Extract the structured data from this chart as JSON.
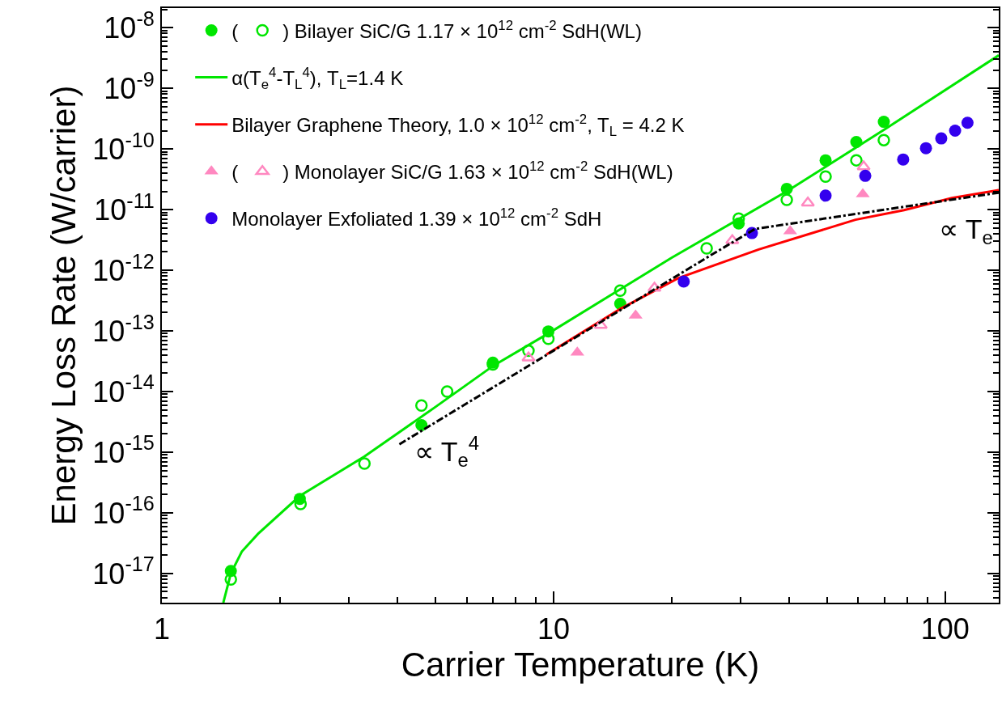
{
  "chart_data": {
    "type": "scatter",
    "xlabel": "Carrier Temperature (K)",
    "ylabel": "Energy Loss Rate (W/carrier)",
    "log": "xy",
    "legend": "top left",
    "xlim": [
      1,
      137
    ],
    "ylim": [
      3.3e-18,
      2.1e-08
    ],
    "xticks": [
      1,
      10,
      100
    ],
    "yticks": [
      {
        "value": 1e-17,
        "label": "10$^{-17}$"
      },
      {
        "value": 1e-16,
        "label": "10$^{-16}$"
      },
      {
        "value": 1e-15,
        "label": "10$^{-15}$"
      },
      {
        "value": 1e-14,
        "label": "10$^{-14}$"
      },
      {
        "value": 1e-13,
        "label": "10$^{-13}$"
      },
      {
        "value": 1e-12,
        "label": "10$^{-12}$"
      },
      {
        "value": 1e-11,
        "label": "10$^{-11}$"
      },
      {
        "value": 1e-10,
        "label": "10$^{-10}$"
      },
      {
        "value": 1e-09,
        "label": "10$^{-9}$"
      },
      {
        "value": 1e-08,
        "label": "10$^{-8}$"
      }
    ],
    "series": [
      {
        "name": "(",
        "marker": "circle",
        "color": "#00e600",
        "x": [
          1.5,
          2.25,
          4.6,
          7.0,
          9.7,
          14.8,
          29.7,
          39.4,
          49.5,
          59.3,
          69.7
        ],
        "values": [
          1.1e-17,
          1.7e-16,
          2.8e-15,
          3e-14,
          9.8e-14,
          2.8e-13,
          5.9e-12,
          2.2e-11,
          6.5e-11,
          1.3e-10,
          2.8e-10
        ]
      },
      {
        "name": ") Bilayer SiC/G 1.17 × 10$^{12}$ cm$^{-2}$ SdH(WL)",
        "marker": "circle-open",
        "color": "#00e600",
        "x": [
          1.5,
          2.26,
          3.29,
          4.6,
          5.35,
          7.0,
          8.63,
          9.7,
          14.8,
          24.6,
          29.7,
          39.4,
          49.5,
          59.3,
          69.7
        ],
        "values": [
          8e-18,
          1.4e-16,
          6.5e-16,
          5.9e-15,
          1e-14,
          2.8e-14,
          4.7e-14,
          7.4e-14,
          4.6e-13,
          2.3e-12,
          7.1e-12,
          1.45e-11,
          3.5e-11,
          6.5e-11,
          1.4e-10
        ]
      },
      {
        "name": "α(T$_{e}$$^{4}$-T$_{L}$$^{4}$), T$_{L}$=1.4 K",
        "type": "line",
        "line_style": "solid",
        "color": "#00e600",
        "x": [
          1.435,
          1.5,
          1.6,
          1.76,
          2.25,
          3.29,
          5,
          7.04,
          9.7,
          20,
          39.4,
          70,
          137
        ],
        "values": [
          3.3e-18,
          1e-17,
          2.3e-17,
          4.5e-17,
          1.9e-16,
          8.5e-16,
          5.6e-15,
          2.7e-14,
          9.1e-14,
          1.6e-12,
          2e-11,
          2.1e-10,
          3.5e-09
        ]
      },
      {
        "name": "Bilayer Graphene Theory, 1.0 × 10$^{12}$ cm$^{-2}$, T$_{L}$ = 4.2 K",
        "type": "line",
        "line_style": "solid",
        "color": "#ff0000",
        "x": [
          9.6,
          14.8,
          20.8,
          33.4,
          59.0,
          78.5,
          104,
          137
        ],
        "values": [
          4.1e-14,
          2.3e-13,
          7.4e-13,
          2.2e-12,
          6.8e-12,
          9.8e-12,
          1.55e-11,
          2.1e-11
        ]
      },
      {
        "name": "(",
        "marker": "triangle",
        "color": "#ff88c0",
        "x": [
          11.5,
          16.2,
          40.2,
          61.6
        ],
        "values": [
          4.4e-14,
          1.8e-13,
          4.4e-12,
          1.8e-11
        ]
      },
      {
        "name": ") Monolayer SiC/G 1.63 × 10$^{12}$ cm$^{-2}$ SdH(WL)",
        "marker": "triangle-open",
        "color": "#ff88c0",
        "x": [
          8.63,
          13.2,
          18.1,
          28.6,
          44.6,
          61.9
        ],
        "values": [
          3.6e-14,
          1.24e-13,
          5.1e-13,
          3.1e-12,
          1.29e-11,
          5.1e-11
        ]
      },
      {
        "name": "Monolayer Exfoliated 1.39 × 10$^{12}$ cm$^{-2}$ SdH",
        "marker": "circle",
        "color": "#3300ee",
        "x": [
          21.5,
          32.1,
          49.5,
          62.5,
          78.1,
          89.3,
          97.7,
          106,
          114
        ],
        "values": [
          6.5e-13,
          4.1e-12,
          1.7e-11,
          3.6e-11,
          6.7e-11,
          1.03e-10,
          1.49e-10,
          2e-10,
          2.7e-10
        ]
      },
      {
        "type": "line",
        "line_style": "dashdot",
        "color": "#000000",
        "x": [
          4.04,
          25.1,
          32.7,
          137
        ],
        "values": [
          1.35e-15,
          1.74e-12,
          4.8e-12,
          1.9e-11
        ]
      }
    ],
    "annotations": [
      "∝ T$_{e}$$^{4}$",
      "∝ T$_{e}$"
    ]
  }
}
